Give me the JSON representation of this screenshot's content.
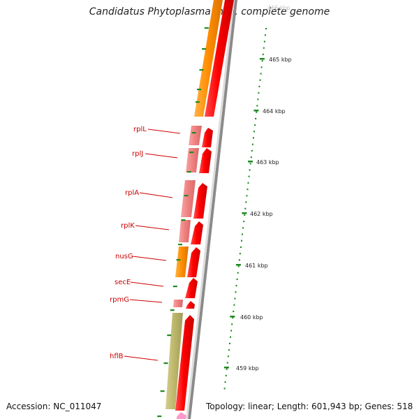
{
  "title": "Candidatus Phytoplasma mali, complete genome",
  "accession": "Accession: NC_011047",
  "topology": "Topology: linear; Length: 601,943 bp; Genes: 518",
  "scale_labels": [
    "466 kbp",
    "465 kbp",
    "464 kbp",
    "463 kbp",
    "462 kbp",
    "461 kbp",
    "460 kbp",
    "459 kbp"
  ],
  "gene_labels": [
    "rplL",
    "rplJ",
    "rplA",
    "rplK",
    "nusG",
    "secE",
    "rpmG",
    "hflB"
  ],
  "colors": {
    "label_red": "#cc0000",
    "orange": "#ff8c00",
    "red": "#ff0000",
    "pink": "#f08080",
    "olive": "#bdb76b",
    "tick_green": "#1f8a1f",
    "backbone": "#888888",
    "magenta": "#ff99cc"
  }
}
